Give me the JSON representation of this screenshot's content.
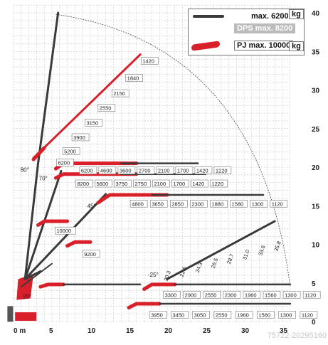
{
  "diagram": {
    "x_ticks": [
      "0 m",
      "5",
      "10",
      "15",
      "20",
      "25",
      "30",
      "35"
    ],
    "y_ticks": [
      "0",
      "5",
      "10",
      "15",
      "20",
      "25",
      "30",
      "35",
      "40"
    ],
    "angles": [
      "80°",
      "70°",
      "45°",
      "20°",
      "-25°"
    ],
    "boom_labels": [
      {
        "id": "b80",
        "labels": [
          "1420",
          "1840",
          "2150",
          "2550",
          "3150",
          "3900",
          "5200",
          "6200"
        ]
      },
      {
        "id": "b70a",
        "labels": [
          "6200",
          "4600",
          "3600",
          "2700",
          "2100",
          "1700",
          "1420",
          "1220"
        ]
      },
      {
        "id": "b70b",
        "labels": [
          "8200",
          "5600",
          "3750",
          "2750",
          "2100",
          "1700",
          "1420",
          "1220"
        ]
      },
      {
        "id": "b45",
        "labels": [
          "4800",
          "3650",
          "2850",
          "2300",
          "1880",
          "1580",
          "1300",
          "1120"
        ]
      },
      {
        "id": "b_neg25",
        "labels": [
          "3300",
          "2900",
          "2550",
          "2300",
          "1960",
          "1560",
          "1300",
          "1120"
        ]
      },
      {
        "id": "b_low",
        "labels": [
          "3950",
          "3450",
          "3050",
          "2550",
          "1960",
          "1560",
          "1300",
          "1120"
        ]
      },
      {
        "id": "b_knuckle",
        "labels": [
          "10000",
          "9200"
        ]
      },
      {
        "id": "jib_slope",
        "labels": [
          "20.3",
          "22.6",
          "24.3",
          "26.5",
          "28.7",
          "31.0",
          "33.6",
          "35.8"
        ]
      }
    ]
  },
  "legend": {
    "main_label": "max. 6200",
    "main_unit": "kg",
    "dps_label": "DPS max. 8200",
    "pj_label": "PJ max. 10000",
    "pj_unit": "kg"
  },
  "watermark": "75722-20295160",
  "colors": {
    "boom_dark": "#3a3a3a",
    "boom_red": "#d9202a",
    "grid": "#b9b9b9",
    "envelope": "#444444"
  }
}
